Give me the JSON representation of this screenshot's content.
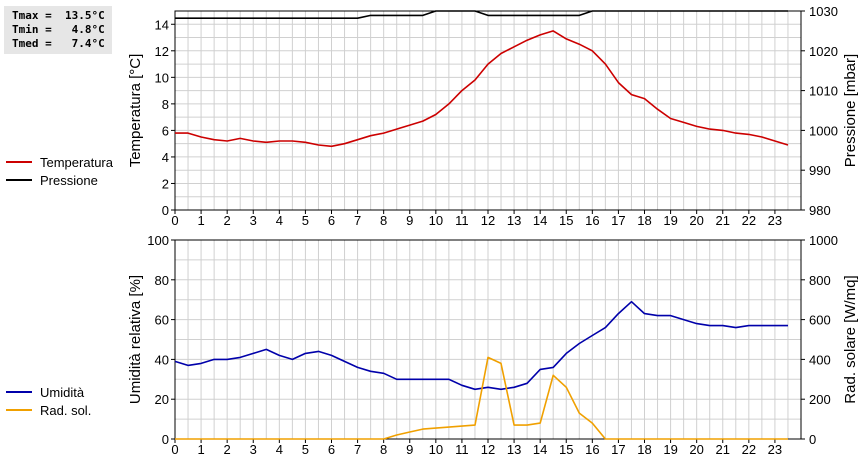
{
  "stats": {
    "tmax": "Tmax =  13.5°C",
    "tmin": "Tmin =   4.8°C",
    "tmed": "Tmed =   7.4°C"
  },
  "colors": {
    "temperature": "#cc0000",
    "pressure": "#000000",
    "humidity": "#0000aa",
    "solar": "#f0a000",
    "grid": "#d0d0d0"
  },
  "chart_data": [
    {
      "type": "line",
      "ylabel_left": "Temperatura [°C]",
      "ylabel_right": "Pressione [mbar]",
      "xlim": [
        0,
        24
      ],
      "x_ticks": [
        0,
        1,
        2,
        3,
        4,
        5,
        6,
        7,
        8,
        9,
        10,
        11,
        12,
        13,
        14,
        15,
        16,
        17,
        18,
        19,
        20,
        21,
        22,
        23
      ],
      "ylim_left": [
        0,
        15
      ],
      "yticks_left": [
        0,
        2,
        4,
        6,
        8,
        10,
        12,
        14
      ],
      "ylim_right": [
        980,
        1030
      ],
      "yticks_right": [
        980,
        990,
        1000,
        1010,
        1020,
        1030
      ],
      "grid": true,
      "legend": [
        "Temperatura",
        "Pressione"
      ],
      "series": [
        {
          "name": "Temperatura",
          "axis": "left",
          "x": [
            0,
            0.5,
            1,
            1.5,
            2,
            2.5,
            3,
            3.5,
            4,
            4.5,
            5,
            5.5,
            6,
            6.5,
            7,
            7.5,
            8,
            8.5,
            9,
            9.5,
            10,
            10.5,
            11,
            11.5,
            12,
            12.5,
            13,
            13.5,
            14,
            14.5,
            15,
            15.5,
            16,
            16.5,
            17,
            17.5,
            18,
            18.5,
            19,
            19.5,
            20,
            20.5,
            21,
            21.5,
            22,
            22.5,
            23,
            23.5
          ],
          "y": [
            5.8,
            5.8,
            5.5,
            5.3,
            5.2,
            5.4,
            5.2,
            5.1,
            5.2,
            5.2,
            5.1,
            4.9,
            4.8,
            5.0,
            5.3,
            5.6,
            5.8,
            6.1,
            6.4,
            6.7,
            7.2,
            8.0,
            9.0,
            9.8,
            11.0,
            11.8,
            12.3,
            12.8,
            13.2,
            13.5,
            12.9,
            12.5,
            12.0,
            11.0,
            9.6,
            8.7,
            8.4,
            7.6,
            6.9,
            6.6,
            6.3,
            6.1,
            6.0,
            5.8,
            5.7,
            5.5,
            5.2,
            4.9
          ]
        },
        {
          "name": "Pressione",
          "axis": "right",
          "x": [
            0,
            1,
            2,
            3,
            4,
            5,
            6,
            7,
            7.5,
            8,
            8.5,
            9,
            9.5,
            10,
            10.5,
            11,
            11.5,
            12,
            12.5,
            13,
            13.5,
            14,
            14.5,
            15,
            15.5,
            16,
            17,
            18,
            19,
            20,
            21,
            22,
            23,
            23.5
          ],
          "y": [
            1028.2,
            1028.2,
            1028.2,
            1028.2,
            1028.2,
            1028.2,
            1028.2,
            1028.2,
            1028.9,
            1028.9,
            1028.9,
            1028.9,
            1028.9,
            1030,
            1030,
            1030,
            1030,
            1028.9,
            1028.9,
            1028.9,
            1028.9,
            1028.9,
            1028.9,
            1028.9,
            1028.9,
            1030,
            1030,
            1030,
            1030,
            1030,
            1030,
            1030,
            1030,
            1030
          ]
        }
      ]
    },
    {
      "type": "line",
      "ylabel_left": "Umidità relativa [%]",
      "ylabel_right": "Rad. solare [W/mq]",
      "xlim": [
        0,
        24
      ],
      "x_ticks": [
        0,
        1,
        2,
        3,
        4,
        5,
        6,
        7,
        8,
        9,
        10,
        11,
        12,
        13,
        14,
        15,
        16,
        17,
        18,
        19,
        20,
        21,
        22,
        23
      ],
      "ylim_left": [
        0,
        100
      ],
      "yticks_left": [
        0,
        20,
        40,
        60,
        80,
        100
      ],
      "ylim_right": [
        0,
        1000
      ],
      "yticks_right": [
        0,
        200,
        400,
        600,
        800,
        1000
      ],
      "grid": true,
      "legend": [
        "Umidità",
        "Rad. sol."
      ],
      "series": [
        {
          "name": "Umidità",
          "axis": "left",
          "x": [
            0,
            0.5,
            1,
            1.5,
            2,
            2.5,
            3,
            3.5,
            4,
            4.5,
            5,
            5.5,
            6,
            6.5,
            7,
            7.5,
            8,
            8.5,
            9,
            9.5,
            10,
            10.5,
            11,
            11.5,
            12,
            12.5,
            13,
            13.5,
            14,
            14.5,
            15,
            15.5,
            16,
            16.5,
            17,
            17.5,
            18,
            18.5,
            19,
            19.5,
            20,
            20.5,
            21,
            21.5,
            22,
            22.5,
            23,
            23.5
          ],
          "y": [
            39,
            37,
            38,
            40,
            40,
            41,
            43,
            45,
            42,
            40,
            43,
            44,
            42,
            39,
            36,
            34,
            33,
            30,
            30,
            30,
            30,
            30,
            27,
            25,
            26,
            25,
            26,
            28,
            35,
            36,
            43,
            48,
            52,
            56,
            63,
            69,
            63,
            62,
            62,
            60,
            58,
            57,
            57,
            56,
            57,
            57,
            57,
            57
          ]
        },
        {
          "name": "Rad. sol.",
          "axis": "right",
          "x": [
            0,
            1,
            2,
            3,
            4,
            5,
            6,
            7,
            8,
            8.5,
            9,
            9.5,
            10,
            10.5,
            11,
            11.5,
            12,
            12.5,
            13,
            13.5,
            14,
            14.5,
            15,
            15.5,
            16,
            16.5,
            17,
            18,
            19,
            20,
            21,
            22,
            23,
            23.5
          ],
          "y": [
            0,
            0,
            0,
            0,
            0,
            0,
            0,
            0,
            0,
            20,
            35,
            50,
            55,
            60,
            65,
            70,
            410,
            380,
            70,
            70,
            80,
            320,
            260,
            130,
            80,
            0,
            0,
            0,
            0,
            0,
            0,
            0,
            0,
            0
          ]
        }
      ]
    }
  ]
}
